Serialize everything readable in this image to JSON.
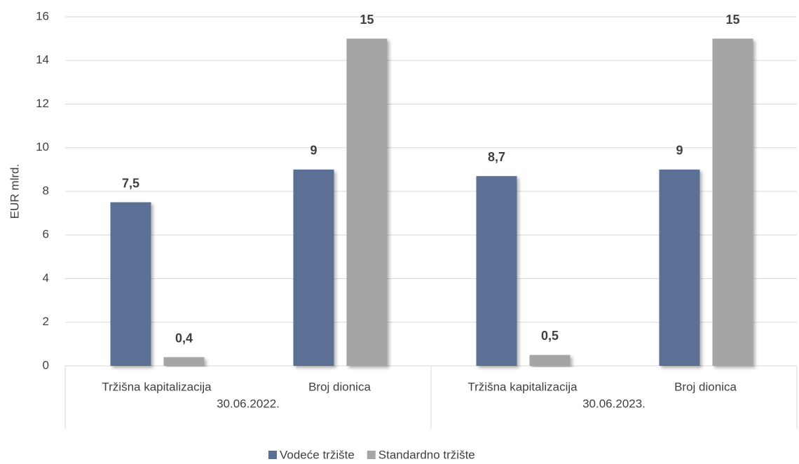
{
  "chart_data": {
    "type": "bar",
    "y_label": "EUR mlrd.",
    "categories": [
      "Tržišna kapitalizacija",
      "Broj dionica",
      "Tržišna kapitalizacija",
      "Broj dionica"
    ],
    "groups": [
      "30.06.2022.",
      "30.06.2023."
    ],
    "series": [
      {
        "name": "Vodeće tržište",
        "color": "#5b6f96",
        "values": [
          7.5,
          9,
          8.7,
          9
        ],
        "value_labels": [
          "7,5",
          "9",
          "8,7",
          "9"
        ]
      },
      {
        "name": "Standardno tržište",
        "color": "#a5a5a5",
        "values": [
          0.4,
          15,
          0.5,
          15
        ],
        "value_labels": [
          "0,4",
          "15",
          "0,5",
          "15"
        ]
      }
    ],
    "ylim": [
      0,
      16
    ],
    "yticks": [
      0,
      2,
      4,
      6,
      8,
      10,
      12,
      14,
      16
    ],
    "grid": true,
    "legend": "bottom"
  }
}
